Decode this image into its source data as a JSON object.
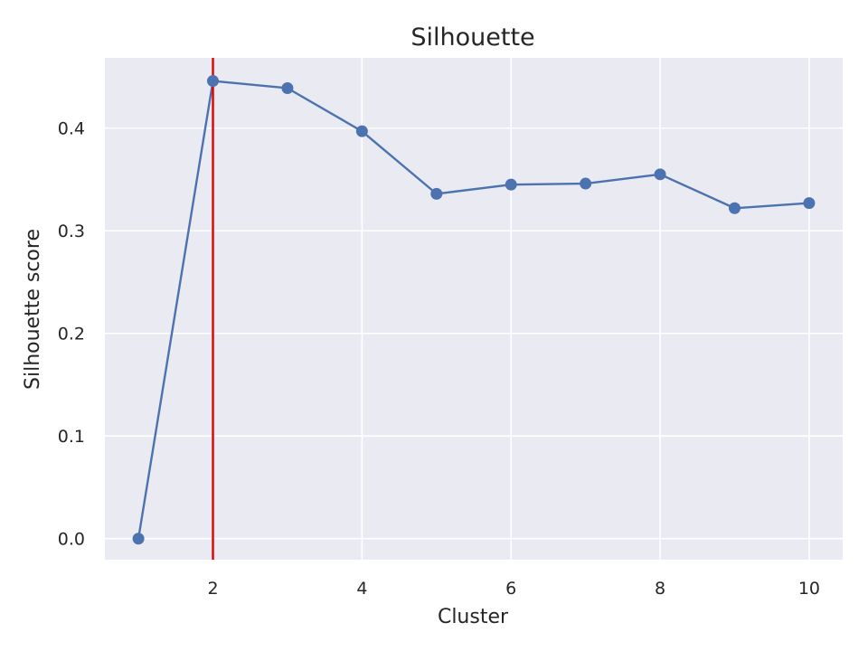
{
  "chart_data": {
    "type": "line",
    "title": "Silhouette",
    "xlabel": "Cluster",
    "ylabel": "Silhouette score",
    "x": [
      1,
      2,
      3,
      4,
      5,
      6,
      7,
      8,
      9,
      10
    ],
    "series": [
      {
        "values": [
          0.0,
          0.446,
          0.439,
          0.397,
          0.336,
          0.345,
          0.346,
          0.355,
          0.322,
          0.327
        ]
      }
    ],
    "xlim": [
      0.55,
      10.45
    ],
    "ylim": [
      -0.0205,
      0.4685
    ],
    "xticks": [
      2,
      4,
      6,
      8,
      10
    ],
    "yticks": [
      0.0,
      0.1,
      0.2,
      0.3,
      0.4
    ],
    "ytick_labels": [
      "0.0",
      "0.1",
      "0.2",
      "0.3",
      "0.4"
    ],
    "vline": {
      "x": 2,
      "color": "#e00000"
    },
    "grid": true,
    "colors": {
      "line": "#4c72b0",
      "background": "#eaeaf2",
      "grid": "#ffffff"
    }
  }
}
